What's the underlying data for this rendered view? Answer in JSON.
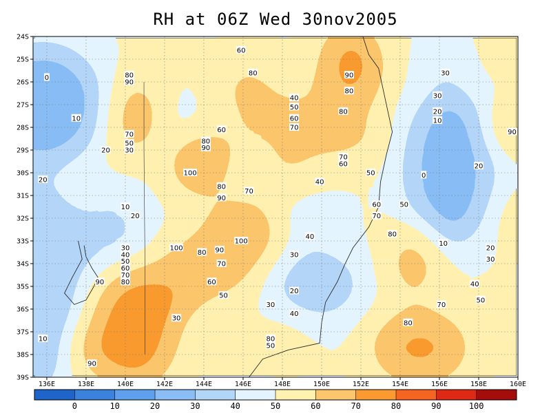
{
  "title": "RH at 06Z Wed 30nov2005",
  "axes": {
    "lat_ticks": [
      "24S",
      "25S",
      "26S",
      "27S",
      "28S",
      "29S",
      "30S",
      "31S",
      "32S",
      "33S",
      "34S",
      "35S",
      "36S",
      "37S",
      "38S",
      "39S"
    ],
    "lon_ticks": [
      "136E",
      "138E",
      "140E",
      "142E",
      "144E",
      "146E",
      "148E",
      "150E",
      "152E",
      "154E",
      "156E",
      "158E",
      "160E"
    ],
    "lat_range": [
      -39,
      -24
    ],
    "lon_range": [
      135.3,
      160
    ],
    "grid": "dotted"
  },
  "colorbar": {
    "labels": [
      "0",
      "10",
      "20",
      "30",
      "40",
      "50",
      "60",
      "70",
      "80",
      "90",
      "100"
    ],
    "colors": [
      "#1f64c8",
      "#3a82dc",
      "#5fa0ec",
      "#89bdf4",
      "#b3d6f8",
      "#e4f4ff",
      "#fff1b0",
      "#fcc66c",
      "#fa9a30",
      "#f56420",
      "#de2a14",
      "#a50c0c"
    ]
  },
  "level_colors": [
    "#1f64c8",
    "#3a82dc",
    "#5fa0ec",
    "#89bdf4",
    "#b3d6f8",
    "#e4f4ff",
    "#fff1b0",
    "#fcc66c",
    "#fa9a30",
    "#f56420",
    "#de2a14",
    "#a50c0c"
  ],
  "field_blobs": [
    {
      "lon": 135.8,
      "lat": -27.0,
      "rx": 3.2,
      "ry": 2.8,
      "v": -55
    },
    {
      "lon": 135.6,
      "lat": -35.0,
      "rx": 2.2,
      "ry": 4.8,
      "v": -40
    },
    {
      "lon": 139.2,
      "lat": -32.6,
      "rx": 2.0,
      "ry": 2.0,
      "v": -25
    },
    {
      "lon": 142.5,
      "lat": -28.2,
      "rx": 1.5,
      "ry": 1.3,
      "v": -15
    },
    {
      "lon": 140.6,
      "lat": -27.6,
      "rx": 1.0,
      "ry": 1.7,
      "v": 45
    },
    {
      "lon": 143.8,
      "lat": -29.6,
      "rx": 1.3,
      "ry": 1.2,
      "v": 55
    },
    {
      "lon": 140.5,
      "lat": -36.8,
      "rx": 2.0,
      "ry": 2.6,
      "v": 55
    },
    {
      "lon": 144.0,
      "lat": -34.2,
      "rx": 2.4,
      "ry": 1.3,
      "v": 40
    },
    {
      "lon": 145.8,
      "lat": -32.6,
      "rx": 1.8,
      "ry": 1.3,
      "v": 45
    },
    {
      "lon": 146.2,
      "lat": -26.6,
      "rx": 1.3,
      "ry": 1.6,
      "v": 35
    },
    {
      "lon": 148.0,
      "lat": -28.3,
      "rx": 2.8,
      "ry": 2.6,
      "v": 25
    },
    {
      "lon": 151.5,
      "lat": -25.3,
      "rx": 1.4,
      "ry": 1.8,
      "v": 55
    },
    {
      "lon": 151.5,
      "lat": -28.3,
      "rx": 1.4,
      "ry": 1.0,
      "v": 35
    },
    {
      "lon": 146.2,
      "lat": -29.8,
      "rx": 0.6,
      "ry": 0.7,
      "v": -22
    },
    {
      "lon": 149.5,
      "lat": -31.8,
      "rx": 1.3,
      "ry": 0.9,
      "v": -22
    },
    {
      "lon": 149.8,
      "lat": -34.9,
      "rx": 2.4,
      "ry": 1.7,
      "v": -35
    },
    {
      "lon": 148.2,
      "lat": -37.3,
      "rx": 0.9,
      "ry": 0.5,
      "v": 25
    },
    {
      "lon": 154.7,
      "lat": -33.9,
      "rx": 1.0,
      "ry": 1.6,
      "v": 42
    },
    {
      "lon": 155.0,
      "lat": -37.7,
      "rx": 2.4,
      "ry": 1.5,
      "v": 48
    },
    {
      "lon": 156.5,
      "lat": -29.8,
      "rx": 2.4,
      "ry": 3.6,
      "v": -52
    },
    {
      "lon": 156.2,
      "lat": -25.3,
      "rx": 1.0,
      "ry": 0.8,
      "v": -25
    },
    {
      "lon": 159.7,
      "lat": -28.0,
      "rx": 0.8,
      "ry": 0.7,
      "v": 55
    },
    {
      "lon": 159.9,
      "lat": -32.0,
      "rx": 0.6,
      "ry": 0.8,
      "v": 30
    },
    {
      "lon": 159.5,
      "lat": -24.6,
      "rx": 0.9,
      "ry": 0.8,
      "v": 12
    }
  ],
  "field_ridge": {
    "from": [
      138.5,
      -37.8
    ],
    "to": [
      146.5,
      -32.8
    ],
    "width": 1.1,
    "v": 50
  },
  "contour_labels": [
    {
      "text": "0",
      "lon": 136.0,
      "lat": -25.8
    },
    {
      "text": "10",
      "lon": 137.5,
      "lat": -27.6
    },
    {
      "text": "20",
      "lon": 135.8,
      "lat": -30.3
    },
    {
      "text": "10",
      "lon": 135.8,
      "lat": -37.3
    },
    {
      "text": "80",
      "lon": 140.2,
      "lat": -25.7
    },
    {
      "text": "90",
      "lon": 140.2,
      "lat": -26.0
    },
    {
      "text": "70",
      "lon": 140.2,
      "lat": -28.3
    },
    {
      "text": "50",
      "lon": 140.2,
      "lat": -28.7
    },
    {
      "text": "30",
      "lon": 140.2,
      "lat": -29.0
    },
    {
      "text": "20",
      "lon": 139.0,
      "lat": -29.0
    },
    {
      "text": "10",
      "lon": 140.0,
      "lat": -31.5
    },
    {
      "text": "20",
      "lon": 140.5,
      "lat": -31.9
    },
    {
      "text": "30",
      "lon": 140.0,
      "lat": -33.3
    },
    {
      "text": "40",
      "lon": 140.0,
      "lat": -33.6
    },
    {
      "text": "50",
      "lon": 140.0,
      "lat": -33.9
    },
    {
      "text": "60",
      "lon": 140.0,
      "lat": -34.2
    },
    {
      "text": "70",
      "lon": 140.0,
      "lat": -34.5
    },
    {
      "text": "80",
      "lon": 140.0,
      "lat": -34.8
    },
    {
      "text": "90",
      "lon": 138.7,
      "lat": -34.8
    },
    {
      "text": "90",
      "lon": 138.3,
      "lat": -38.4
    },
    {
      "text": "30",
      "lon": 142.6,
      "lat": -36.4
    },
    {
      "text": "80",
      "lon": 144.1,
      "lat": -28.6
    },
    {
      "text": "90",
      "lon": 144.1,
      "lat": -28.9
    },
    {
      "text": "100",
      "lon": 143.3,
      "lat": -30.0
    },
    {
      "text": "60",
      "lon": 144.9,
      "lat": -28.1
    },
    {
      "text": "70",
      "lon": 146.3,
      "lat": -30.8
    },
    {
      "text": "80",
      "lon": 144.9,
      "lat": -30.6
    },
    {
      "text": "90",
      "lon": 144.9,
      "lat": -31.1
    },
    {
      "text": "100",
      "lon": 145.9,
      "lat": -33.0
    },
    {
      "text": "100",
      "lon": 142.6,
      "lat": -33.3
    },
    {
      "text": "80",
      "lon": 143.9,
      "lat": -33.5
    },
    {
      "text": "90",
      "lon": 144.8,
      "lat": -33.4
    },
    {
      "text": "70",
      "lon": 144.9,
      "lat": -34.0
    },
    {
      "text": "60",
      "lon": 144.4,
      "lat": -34.8
    },
    {
      "text": "50",
      "lon": 145.0,
      "lat": -35.4
    },
    {
      "text": "60",
      "lon": 145.9,
      "lat": -24.6
    },
    {
      "text": "80",
      "lon": 146.5,
      "lat": -25.6
    },
    {
      "text": "40",
      "lon": 148.6,
      "lat": -26.7
    },
    {
      "text": "50",
      "lon": 148.6,
      "lat": -27.1
    },
    {
      "text": "60",
      "lon": 148.6,
      "lat": -27.6
    },
    {
      "text": "70",
      "lon": 148.6,
      "lat": -28.0
    },
    {
      "text": "90",
      "lon": 151.4,
      "lat": -25.7
    },
    {
      "text": "80",
      "lon": 151.4,
      "lat": -26.4
    },
    {
      "text": "80",
      "lon": 151.1,
      "lat": -27.3
    },
    {
      "text": "70",
      "lon": 151.1,
      "lat": -29.3
    },
    {
      "text": "60",
      "lon": 151.1,
      "lat": -29.6
    },
    {
      "text": "50",
      "lon": 152.5,
      "lat": -30.0
    },
    {
      "text": "40",
      "lon": 149.9,
      "lat": -30.4
    },
    {
      "text": "60",
      "lon": 152.8,
      "lat": -31.4
    },
    {
      "text": "70",
      "lon": 152.8,
      "lat": -31.9
    },
    {
      "text": "50",
      "lon": 154.2,
      "lat": -31.4
    },
    {
      "text": "80",
      "lon": 153.6,
      "lat": -32.7
    },
    {
      "text": "40",
      "lon": 149.4,
      "lat": -32.8
    },
    {
      "text": "30",
      "lon": 148.6,
      "lat": -33.6
    },
    {
      "text": "20",
      "lon": 148.6,
      "lat": -35.2
    },
    {
      "text": "30",
      "lon": 147.4,
      "lat": -35.8
    },
    {
      "text": "40",
      "lon": 148.6,
      "lat": -36.2
    },
    {
      "text": "80",
      "lon": 147.4,
      "lat": -37.3
    },
    {
      "text": "50",
      "lon": 147.4,
      "lat": -37.6
    },
    {
      "text": "80",
      "lon": 154.4,
      "lat": -36.6
    },
    {
      "text": "70",
      "lon": 156.1,
      "lat": -35.8
    },
    {
      "text": "40",
      "lon": 157.8,
      "lat": -34.9
    },
    {
      "text": "50",
      "lon": 158.1,
      "lat": -35.6
    },
    {
      "text": "30",
      "lon": 156.3,
      "lat": -25.6
    },
    {
      "text": "30",
      "lon": 155.9,
      "lat": -26.6
    },
    {
      "text": "20",
      "lon": 155.9,
      "lat": -27.3
    },
    {
      "text": "10",
      "lon": 155.9,
      "lat": -27.7
    },
    {
      "text": "20",
      "lon": 158.0,
      "lat": -29.7
    },
    {
      "text": "0",
      "lon": 155.2,
      "lat": -30.1
    },
    {
      "text": "10",
      "lon": 156.2,
      "lat": -33.1
    },
    {
      "text": "20",
      "lon": 158.6,
      "lat": -33.3
    },
    {
      "text": "30",
      "lon": 158.6,
      "lat": -33.8
    },
    {
      "text": "90",
      "lon": 159.7,
      "lat": -28.2
    }
  ]
}
